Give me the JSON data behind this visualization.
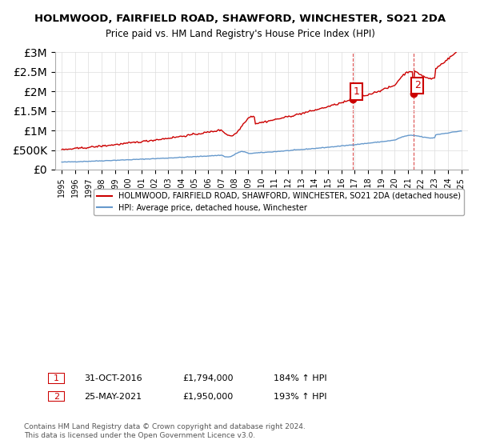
{
  "title": "HOLMWOOD, FAIRFIELD ROAD, SHAWFORD, WINCHESTER, SO21 2DA",
  "subtitle": "Price paid vs. HM Land Registry's House Price Index (HPI)",
  "legend_line1": "HOLMWOOD, FAIRFIELD ROAD, SHAWFORD, WINCHESTER, SO21 2DA (detached house)",
  "legend_line2": "HPI: Average price, detached house, Winchester",
  "annotation1_label": "1",
  "annotation1_date": "31-OCT-2016",
  "annotation1_price": "£1,794,000",
  "annotation1_hpi": "184% ↑ HPI",
  "annotation2_label": "2",
  "annotation2_date": "25-MAY-2021",
  "annotation2_price": "£1,950,000",
  "annotation2_hpi": "193% ↑ HPI",
  "copyright": "Contains HM Land Registry data © Crown copyright and database right 2024.\nThis data is licensed under the Open Government Licence v3.0.",
  "hpi_color": "#6699cc",
  "price_color": "#cc0000",
  "annotation_color": "#cc0000",
  "dashed_line_color": "#cc0000",
  "background_color": "#ffffff",
  "grid_color": "#dddddd",
  "ylim_max": 3000000,
  "sale1_year": 2016.83,
  "sale1_price": 1794000,
  "sale2_year": 2021.4,
  "sale2_price": 1950000
}
